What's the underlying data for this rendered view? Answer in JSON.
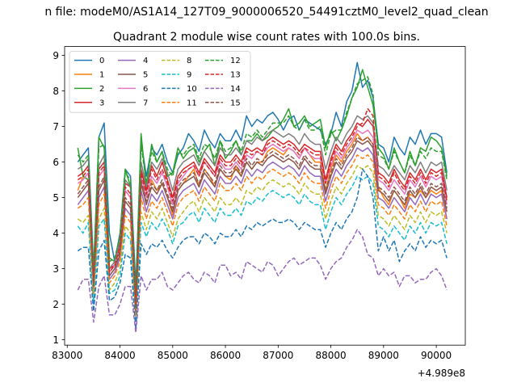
{
  "suptitle": "n file: modeM0/AS1A14_127T09_9000006520_54491cztM0_level2_quad_clean",
  "chart_data": {
    "type": "line",
    "title": "Quadrant 2 module wise count rates with 100.0s bins.",
    "xlabel": "",
    "ylabel": "",
    "x_offset_label": "+4.989e8",
    "xlim": [
      82950,
      90550
    ],
    "ylim": [
      0.85,
      9.25
    ],
    "x_ticks": [
      83000,
      84000,
      85000,
      86000,
      87000,
      88000,
      89000,
      90000
    ],
    "x_tick_labels": [
      "83000",
      "84000",
      "85000",
      "86000",
      "87000",
      "88000",
      "89000",
      "90000"
    ],
    "y_ticks": [
      1,
      2,
      3,
      4,
      5,
      6,
      7,
      8,
      9
    ],
    "y_tick_labels": [
      "1",
      "2",
      "3",
      "4",
      "5",
      "6",
      "7",
      "8",
      "9"
    ],
    "legend_position": "top-left",
    "legend_columns": 4,
    "x": {
      "start": 83200,
      "step": 100,
      "count": 71
    },
    "series": [
      {
        "name": "0",
        "color": "#1f77b4",
        "dash": false,
        "values": [
          6.0,
          6.2,
          6.4,
          3.0,
          6.7,
          7.1,
          4.0,
          3.2,
          4.0,
          5.8,
          5.6,
          2.5,
          6.6,
          5.6,
          6.4,
          6.2,
          6.5,
          6.0,
          5.7,
          6.2,
          6.4,
          6.8,
          6.6,
          6.3,
          6.9,
          6.6,
          6.4,
          6.8,
          6.6,
          6.6,
          6.9,
          6.6,
          7.3,
          7.0,
          7.2,
          7.1,
          7.3,
          7.4,
          7.2,
          6.9,
          7.2,
          7.3,
          6.9,
          7.2,
          7.1,
          7.0,
          6.9,
          6.5,
          6.8,
          7.4,
          7.0,
          7.7,
          8.0,
          8.8,
          8.1,
          8.3,
          7.8,
          6.5,
          6.4,
          6.0,
          6.7,
          6.4,
          6.2,
          6.7,
          6.5,
          6.9,
          6.5,
          6.8,
          6.8,
          6.7,
          5.7
        ]
      },
      {
        "name": "1",
        "color": "#ff7f0e",
        "dash": false,
        "values": [
          5.2,
          5.6,
          5.5,
          2.8,
          5.6,
          5.8,
          3.0,
          3.2,
          3.6,
          5.2,
          5.0,
          2.0,
          5.4,
          5.0,
          5.5,
          5.2,
          5.4,
          5.0,
          4.5,
          5.2,
          5.4,
          5.6,
          5.8,
          5.3,
          5.8,
          5.6,
          5.3,
          5.8,
          5.6,
          5.5,
          5.9,
          5.6,
          6.0,
          5.8,
          6.0,
          6.0,
          6.3,
          6.4,
          6.3,
          6.2,
          6.4,
          6.3,
          6.1,
          6.4,
          6.2,
          6.0,
          6.0,
          5.2,
          5.8,
          6.2,
          6.0,
          6.3,
          6.5,
          6.8,
          6.6,
          6.7,
          6.5,
          5.3,
          5.0,
          4.8,
          5.2,
          5.0,
          4.7,
          5.1,
          5.0,
          5.2,
          5.0,
          5.2,
          5.1,
          5.2,
          4.4
        ]
      },
      {
        "name": "2",
        "color": "#2ca02c",
        "dash": false,
        "values": [
          6.4,
          5.6,
          5.5,
          2.9,
          6.7,
          6.4,
          3.3,
          3.2,
          3.9,
          5.8,
          5.3,
          2.2,
          6.8,
          5.3,
          6.5,
          6.0,
          6.3,
          5.6,
          5.7,
          6.4,
          6.1,
          6.3,
          6.4,
          6.0,
          6.3,
          6.5,
          5.9,
          6.6,
          6.1,
          6.3,
          6.6,
          6.2,
          6.6,
          6.6,
          6.8,
          6.6,
          6.7,
          6.9,
          7.0,
          7.2,
          7.5,
          7.0,
          7.1,
          7.3,
          7.0,
          7.1,
          7.2,
          6.4,
          6.9,
          6.6,
          6.9,
          7.3,
          7.8,
          8.1,
          8.6,
          8.1,
          7.6,
          6.4,
          6.2,
          5.8,
          6.4,
          6.0,
          5.7,
          6.3,
          5.9,
          6.4,
          6.3,
          6.7,
          6.6,
          6.4,
          5.6
        ]
      },
      {
        "name": "3",
        "color": "#d62728",
        "dash": false,
        "values": [
          5.6,
          5.7,
          5.9,
          2.6,
          5.8,
          6.0,
          3.0,
          3.1,
          3.7,
          5.4,
          5.3,
          2.0,
          5.8,
          5.2,
          5.9,
          5.6,
          6.0,
          5.5,
          5.0,
          5.6,
          5.8,
          5.9,
          6.0,
          5.7,
          6.1,
          5.9,
          5.7,
          6.2,
          6.0,
          6.0,
          6.2,
          6.0,
          6.4,
          6.3,
          6.4,
          6.3,
          6.6,
          6.7,
          6.6,
          6.5,
          6.6,
          6.5,
          6.3,
          6.5,
          6.4,
          6.3,
          6.3,
          5.5,
          6.1,
          6.5,
          6.3,
          6.6,
          6.8,
          7.1,
          7.0,
          7.2,
          7.0,
          5.7,
          5.6,
          5.4,
          5.8,
          5.5,
          5.3,
          5.7,
          5.5,
          5.8,
          5.5,
          5.8,
          5.7,
          5.8,
          5.0
        ]
      },
      {
        "name": "4",
        "color": "#9467bd",
        "dash": false,
        "values": [
          4.8,
          5.0,
          5.2,
          2.4,
          5.0,
          5.3,
          2.7,
          2.9,
          3.3,
          4.7,
          4.5,
          1.7,
          5.2,
          4.6,
          5.1,
          4.9,
          5.2,
          4.8,
          4.4,
          5.0,
          5.2,
          5.3,
          5.4,
          5.1,
          5.5,
          5.3,
          5.1,
          5.6,
          5.4,
          5.4,
          5.6,
          5.4,
          5.8,
          5.6,
          5.8,
          5.7,
          5.9,
          6.0,
          5.9,
          5.8,
          5.9,
          5.8,
          5.6,
          5.9,
          5.7,
          5.6,
          5.6,
          4.9,
          5.4,
          5.8,
          5.6,
          5.9,
          6.1,
          6.4,
          6.3,
          6.4,
          6.2,
          5.0,
          4.9,
          4.7,
          5.0,
          4.8,
          4.6,
          5.0,
          4.8,
          5.1,
          4.8,
          5.1,
          5.0,
          5.1,
          4.4
        ]
      },
      {
        "name": "5",
        "color": "#8c564b",
        "dash": false,
        "values": [
          5.0,
          5.2,
          5.4,
          2.5,
          5.2,
          5.5,
          2.8,
          3.0,
          3.4,
          4.9,
          4.7,
          1.8,
          5.4,
          4.8,
          5.3,
          5.1,
          5.4,
          5.0,
          4.6,
          5.2,
          5.4,
          5.5,
          5.6,
          5.3,
          5.7,
          5.5,
          5.3,
          5.8,
          5.6,
          5.6,
          5.8,
          5.6,
          6.0,
          5.8,
          6.0,
          5.9,
          6.1,
          6.2,
          6.1,
          6.0,
          6.1,
          6.0,
          5.8,
          6.1,
          5.9,
          5.8,
          5.8,
          5.1,
          5.6,
          6.0,
          5.8,
          6.1,
          6.3,
          6.6,
          6.5,
          6.6,
          6.4,
          5.2,
          5.1,
          4.9,
          5.2,
          5.0,
          4.8,
          5.2,
          5.0,
          5.3,
          5.0,
          5.3,
          5.2,
          5.3,
          4.6
        ]
      },
      {
        "name": "6",
        "color": "#e377c2",
        "dash": false,
        "values": [
          5.4,
          5.5,
          5.7,
          2.6,
          5.6,
          5.8,
          2.9,
          3.1,
          3.6,
          5.2,
          5.0,
          1.9,
          5.6,
          5.0,
          5.6,
          5.4,
          5.7,
          5.3,
          4.8,
          5.4,
          5.6,
          5.8,
          5.9,
          5.6,
          6.0,
          5.8,
          5.6,
          6.0,
          5.8,
          5.8,
          6.0,
          5.8,
          6.2,
          6.1,
          6.3,
          6.2,
          6.4,
          6.5,
          6.4,
          6.3,
          6.4,
          6.3,
          6.1,
          6.4,
          6.2,
          6.1,
          6.1,
          5.4,
          5.9,
          6.3,
          6.1,
          6.4,
          6.6,
          6.9,
          6.8,
          6.9,
          6.7,
          5.5,
          5.4,
          5.2,
          5.5,
          5.3,
          5.1,
          5.5,
          5.3,
          5.6,
          5.3,
          5.6,
          5.5,
          5.6,
          4.8
        ]
      },
      {
        "name": "7",
        "color": "#7f7f7f",
        "dash": false,
        "values": [
          5.8,
          5.9,
          6.1,
          2.7,
          5.9,
          6.2,
          3.0,
          3.2,
          3.8,
          5.5,
          5.3,
          2.0,
          6.0,
          5.3,
          6.0,
          5.8,
          6.1,
          5.7,
          5.2,
          5.8,
          6.0,
          6.1,
          6.2,
          5.9,
          6.3,
          6.1,
          5.9,
          6.4,
          6.2,
          6.2,
          6.4,
          6.2,
          6.6,
          6.5,
          6.7,
          6.6,
          6.8,
          6.9,
          6.8,
          6.7,
          6.8,
          6.7,
          6.5,
          6.8,
          6.6,
          6.5,
          6.5,
          5.8,
          6.3,
          6.7,
          6.5,
          6.8,
          7.0,
          7.3,
          7.2,
          7.3,
          7.1,
          5.9,
          5.8,
          5.6,
          5.9,
          5.7,
          5.5,
          5.9,
          5.7,
          6.0,
          5.7,
          6.0,
          5.9,
          6.0,
          5.2
        ]
      },
      {
        "name": "8",
        "color": "#bcbd22",
        "dash": true,
        "values": [
          4.4,
          4.3,
          4.5,
          2.1,
          4.4,
          4.7,
          2.4,
          2.6,
          3.0,
          4.2,
          4.0,
          1.6,
          4.6,
          4.1,
          4.6,
          4.4,
          4.7,
          4.3,
          3.9,
          4.4,
          4.6,
          4.8,
          4.9,
          4.6,
          5.0,
          4.8,
          4.6,
          5.0,
          4.8,
          4.8,
          5.0,
          4.8,
          5.2,
          5.1,
          5.3,
          5.2,
          5.4,
          5.5,
          5.4,
          5.3,
          5.4,
          5.3,
          5.1,
          5.4,
          5.2,
          5.1,
          5.1,
          4.4,
          4.9,
          5.3,
          5.1,
          5.4,
          5.6,
          5.9,
          5.8,
          5.9,
          5.7,
          4.5,
          4.4,
          4.2,
          4.5,
          4.3,
          4.1,
          4.5,
          4.3,
          4.6,
          4.3,
          4.6,
          4.5,
          4.6,
          4.0
        ]
      },
      {
        "name": "9",
        "color": "#17becf",
        "dash": true,
        "values": [
          4.2,
          4.0,
          4.3,
          2.0,
          4.2,
          4.4,
          2.3,
          2.4,
          2.8,
          4.0,
          3.8,
          1.5,
          4.3,
          3.9,
          4.3,
          4.1,
          4.4,
          4.1,
          3.7,
          4.2,
          4.3,
          4.5,
          4.6,
          4.3,
          4.7,
          4.5,
          4.3,
          4.7,
          4.5,
          4.5,
          4.7,
          4.5,
          4.9,
          4.8,
          5.0,
          4.9,
          5.1,
          5.2,
          5.1,
          5.0,
          5.1,
          5.0,
          4.8,
          5.1,
          4.9,
          4.8,
          4.8,
          4.1,
          4.6,
          5.0,
          4.8,
          5.1,
          5.3,
          5.6,
          5.5,
          5.6,
          5.4,
          4.2,
          4.1,
          3.9,
          4.2,
          4.0,
          3.8,
          4.2,
          4.0,
          4.3,
          4.0,
          4.3,
          4.2,
          4.3,
          3.7
        ]
      },
      {
        "name": "10",
        "color": "#1f77b4",
        "dash": true,
        "values": [
          3.5,
          3.6,
          3.6,
          1.8,
          3.5,
          3.8,
          2.1,
          2.2,
          2.6,
          3.4,
          3.3,
          1.3,
          3.7,
          3.4,
          3.7,
          3.6,
          3.8,
          3.5,
          3.3,
          3.6,
          3.8,
          3.9,
          3.9,
          3.7,
          4.0,
          3.9,
          3.7,
          4.0,
          3.9,
          3.9,
          4.1,
          3.9,
          4.2,
          4.1,
          4.3,
          4.2,
          4.3,
          4.4,
          4.3,
          4.3,
          4.4,
          4.3,
          4.1,
          4.3,
          4.2,
          4.1,
          4.1,
          3.6,
          4.0,
          4.3,
          4.1,
          4.4,
          4.6,
          5.0,
          5.8,
          5.6,
          5.0,
          3.5,
          3.9,
          3.5,
          3.8,
          3.2,
          3.5,
          3.7,
          3.5,
          3.9,
          3.6,
          3.8,
          3.7,
          3.8,
          3.3
        ]
      },
      {
        "name": "11",
        "color": "#ff7f0e",
        "dash": true,
        "values": [
          4.7,
          4.8,
          5.0,
          2.3,
          4.8,
          5.1,
          2.6,
          2.8,
          3.2,
          4.5,
          4.3,
          1.7,
          5.0,
          4.4,
          4.9,
          4.7,
          5.0,
          4.6,
          4.2,
          4.8,
          5.0,
          5.1,
          5.2,
          4.9,
          5.3,
          5.1,
          4.9,
          5.4,
          5.2,
          5.2,
          5.4,
          5.2,
          5.6,
          5.4,
          5.6,
          5.5,
          5.7,
          5.8,
          5.7,
          5.6,
          5.7,
          5.6,
          5.4,
          5.7,
          5.5,
          5.4,
          5.4,
          4.7,
          5.2,
          5.6,
          5.4,
          5.7,
          5.9,
          6.2,
          6.1,
          6.2,
          6.0,
          4.8,
          4.7,
          4.5,
          4.8,
          4.6,
          4.4,
          4.8,
          4.6,
          4.9,
          4.6,
          4.9,
          4.8,
          4.9,
          4.2
        ]
      },
      {
        "name": "12",
        "color": "#2ca02c",
        "dash": true,
        "values": [
          6.2,
          6.0,
          6.2,
          2.8,
          6.4,
          6.5,
          3.2,
          3.3,
          3.9,
          5.7,
          5.5,
          2.1,
          6.5,
          5.4,
          6.3,
          6.0,
          6.3,
          5.8,
          5.6,
          6.3,
          6.2,
          6.4,
          6.5,
          6.1,
          6.5,
          6.4,
          6.1,
          6.6,
          6.3,
          6.4,
          6.6,
          6.3,
          6.8,
          6.7,
          6.9,
          6.7,
          6.9,
          7.1,
          7.1,
          7.1,
          7.3,
          7.0,
          6.9,
          7.2,
          6.9,
          6.9,
          7.0,
          6.2,
          6.8,
          6.9,
          6.9,
          7.4,
          7.8,
          8.2,
          8.3,
          8.4,
          7.9,
          6.2,
          6.1,
          5.8,
          6.3,
          6.0,
          5.7,
          6.2,
          5.9,
          6.3,
          6.1,
          6.4,
          6.3,
          6.3,
          5.5
        ]
      },
      {
        "name": "13",
        "color": "#d62728",
        "dash": true,
        "values": [
          5.5,
          5.6,
          5.8,
          2.6,
          5.7,
          5.9,
          2.9,
          3.1,
          3.6,
          5.3,
          5.1,
          1.9,
          5.7,
          5.1,
          5.8,
          5.5,
          5.8,
          5.4,
          4.9,
          5.5,
          5.7,
          5.8,
          5.9,
          5.6,
          6.0,
          5.8,
          5.6,
          6.1,
          5.9,
          5.9,
          6.1,
          5.9,
          6.3,
          6.2,
          6.3,
          6.2,
          6.5,
          6.6,
          6.5,
          6.4,
          6.5,
          6.4,
          6.2,
          6.4,
          6.3,
          6.2,
          6.2,
          5.4,
          6.0,
          6.4,
          6.2,
          6.5,
          6.7,
          7.0,
          7.1,
          7.5,
          7.3,
          5.6,
          5.5,
          5.3,
          5.7,
          5.4,
          5.2,
          5.6,
          5.4,
          5.7,
          5.4,
          5.7,
          5.6,
          5.7,
          4.9
        ]
      },
      {
        "name": "14",
        "color": "#9467bd",
        "dash": true,
        "values": [
          2.4,
          2.7,
          2.7,
          1.5,
          2.5,
          2.8,
          1.7,
          1.7,
          2.0,
          2.5,
          2.5,
          1.2,
          2.8,
          2.4,
          2.7,
          2.7,
          2.9,
          2.5,
          2.4,
          2.6,
          2.8,
          2.9,
          2.7,
          2.6,
          2.9,
          2.8,
          2.6,
          3.1,
          3.1,
          2.8,
          2.9,
          2.7,
          3.2,
          3.1,
          3.0,
          2.9,
          3.2,
          3.1,
          2.8,
          3.0,
          3.2,
          3.3,
          3.1,
          3.2,
          3.3,
          3.3,
          3.1,
          2.7,
          3.0,
          3.2,
          3.3,
          3.6,
          3.8,
          4.1,
          3.9,
          3.4,
          3.3,
          2.8,
          3.0,
          2.8,
          2.9,
          2.5,
          2.8,
          2.8,
          2.6,
          2.7,
          2.7,
          2.9,
          3.0,
          2.8,
          2.4
        ]
      },
      {
        "name": "15",
        "color": "#8c564b",
        "dash": true,
        "values": [
          5.1,
          5.3,
          5.5,
          2.5,
          5.3,
          5.6,
          2.8,
          3.0,
          3.5,
          5.0,
          4.8,
          1.8,
          5.5,
          4.9,
          5.4,
          5.2,
          5.5,
          5.1,
          4.7,
          5.3,
          5.5,
          5.6,
          5.7,
          5.4,
          5.8,
          5.6,
          5.4,
          5.9,
          5.7,
          5.7,
          5.9,
          5.7,
          6.1,
          5.9,
          6.1,
          6.0,
          6.2,
          6.3,
          6.2,
          6.1,
          6.2,
          6.1,
          5.9,
          6.2,
          6.0,
          5.9,
          5.9,
          5.2,
          5.7,
          6.1,
          5.9,
          6.2,
          6.4,
          6.7,
          6.6,
          6.7,
          6.5,
          5.3,
          5.2,
          5.0,
          5.3,
          5.1,
          4.9,
          5.3,
          5.1,
          5.4,
          5.1,
          5.4,
          5.3,
          5.4,
          4.7
        ]
      }
    ]
  }
}
